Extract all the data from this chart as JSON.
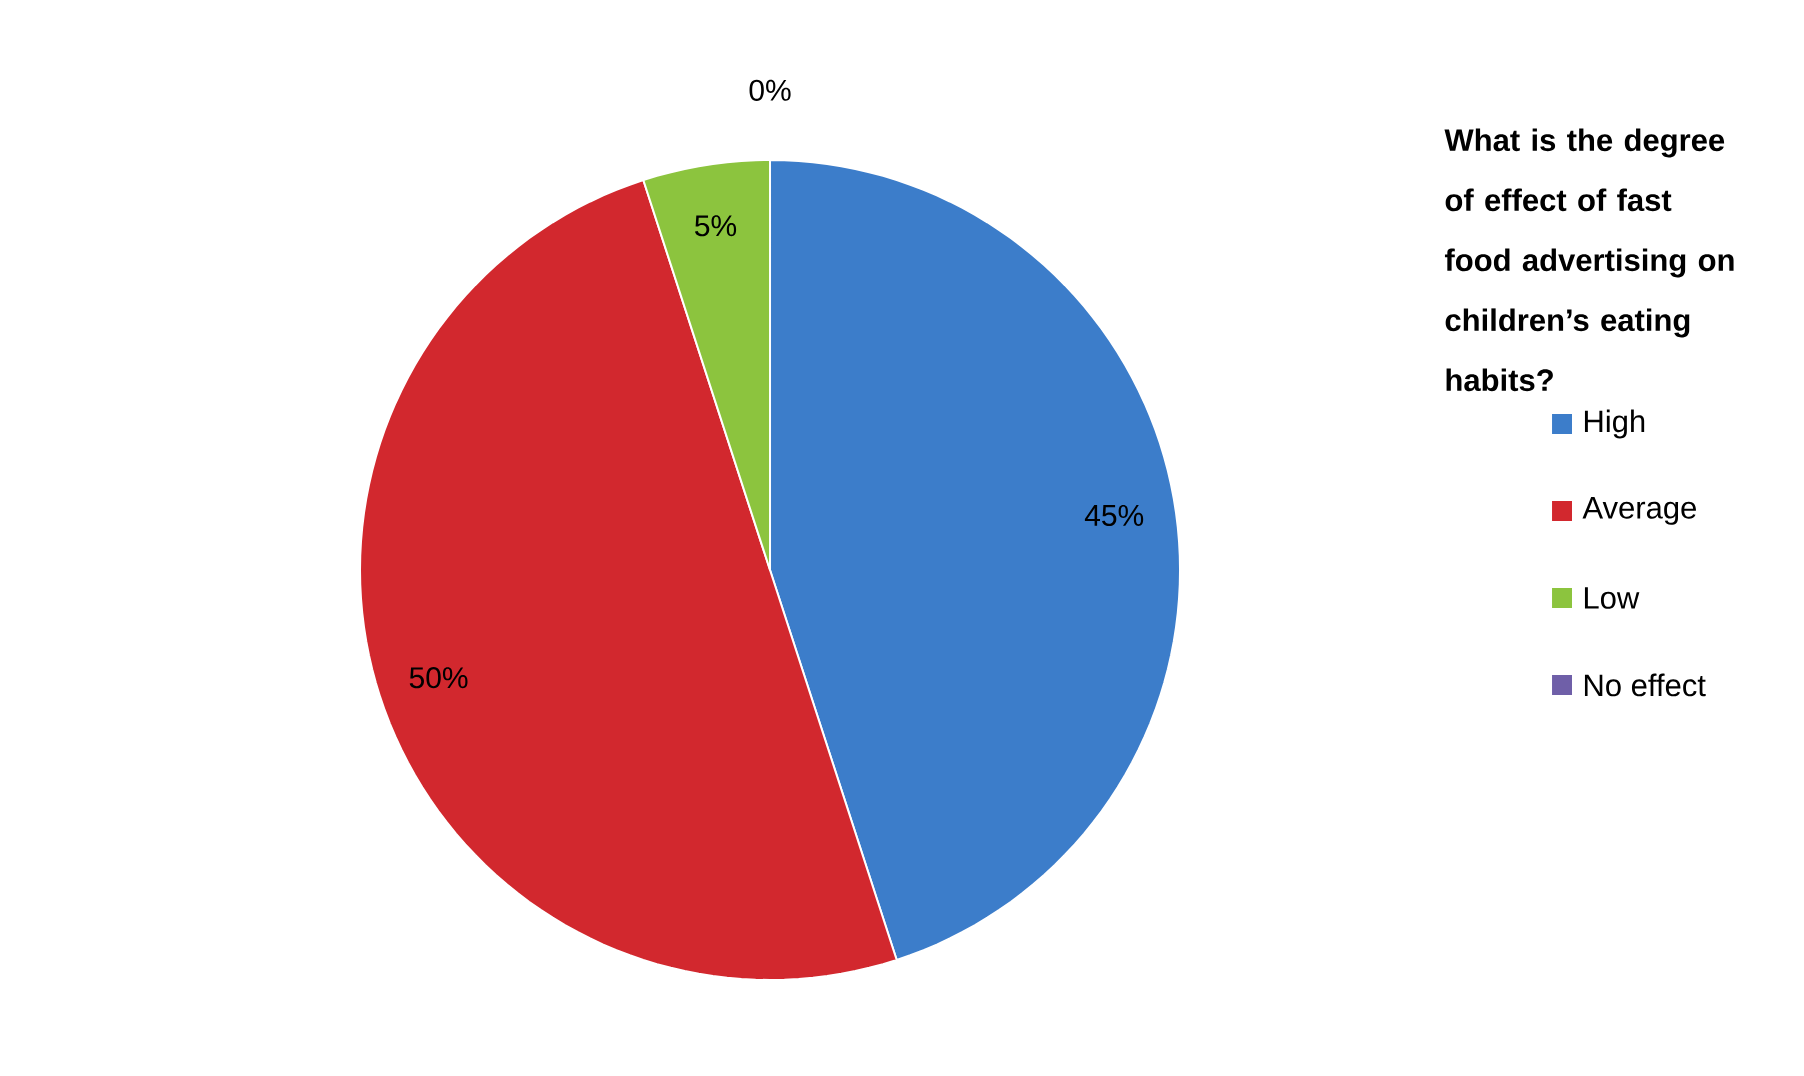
{
  "chart_data": {
    "type": "pie",
    "title": "What is the degree of effect of fast food advertising on children’s eating habits?",
    "categories": [
      "High",
      "Average",
      "Low",
      "No effect"
    ],
    "values": [
      45,
      50,
      5,
      0
    ],
    "colors": [
      "#3c7dca",
      "#d2282e",
      "#8cc43e",
      "#6f5fa8"
    ],
    "value_labels": [
      "45%",
      "50%",
      "5%",
      "0%"
    ],
    "legend": "right"
  }
}
